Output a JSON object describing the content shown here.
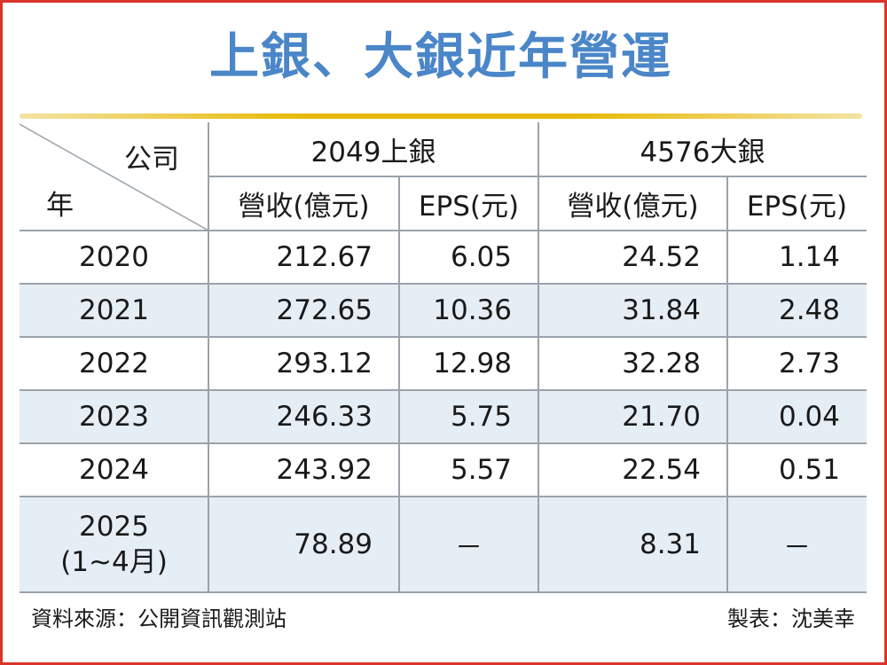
{
  "title": "上銀、大銀近年營運",
  "header": {
    "corner_company": "公司",
    "corner_year": "年",
    "company_a": "2049上銀",
    "company_b": "4576大銀",
    "col_revenue_a": "營收(億元)",
    "col_eps_a": "EPS(元)",
    "col_revenue_b": "營收(億元)",
    "col_eps_b": "EPS(元)"
  },
  "rows": [
    {
      "year": "2020",
      "rev_a": "212.67",
      "eps_a": "6.05",
      "rev_b": "24.52",
      "eps_b": "1.14"
    },
    {
      "year": "2021",
      "rev_a": "272.65",
      "eps_a": "10.36",
      "rev_b": "31.84",
      "eps_b": "2.48"
    },
    {
      "year": "2022",
      "rev_a": "293.12",
      "eps_a": "12.98",
      "rev_b": "32.28",
      "eps_b": "2.73"
    },
    {
      "year": "2023",
      "rev_a": "246.33",
      "eps_a": "5.75",
      "rev_b": "21.70",
      "eps_b": "0.04"
    },
    {
      "year": "2024",
      "rev_a": "243.92",
      "eps_a": "5.57",
      "rev_b": "22.54",
      "eps_b": "0.51"
    },
    {
      "year": "2025",
      "year_sub": "(1~4月)",
      "rev_a": "78.89",
      "eps_a": "－",
      "rev_b": "8.31",
      "eps_b": "－"
    }
  ],
  "footer": {
    "source": "資料來源：公開資訊觀測站",
    "author": "製表：沈美幸"
  }
}
